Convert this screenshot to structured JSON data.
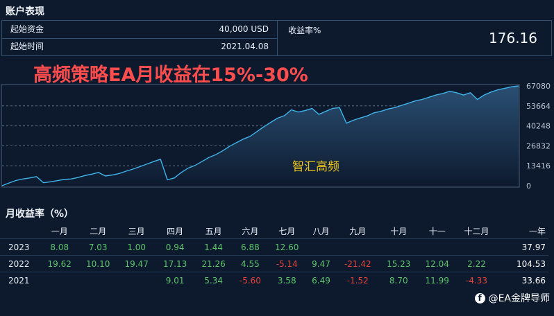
{
  "account": {
    "title": "账户表现",
    "start_capital_label": "起始资金",
    "start_capital_value": "40,000 USD",
    "start_time_label": "起始时间",
    "start_time_value": "2021.04.08",
    "return_label": "收益率%",
    "return_value": "176.16"
  },
  "headline": "高频策略EA月收益在15%-30%",
  "chart_data": {
    "type": "line",
    "annotation": "智汇高频",
    "y_ticks": [
      "67080",
      "53664",
      "40248",
      "26832",
      "13416",
      "0"
    ],
    "ylim": [
      0,
      67080
    ],
    "grid": true,
    "colors": {
      "line": "#3fb4ea",
      "fill_top": "#2a4f73",
      "fill_bottom": "#0d1a2e"
    },
    "values": [
      0,
      1800,
      3500,
      4500,
      5200,
      6100,
      2000,
      2600,
      3400,
      4200,
      4500,
      5500,
      6800,
      7800,
      8900,
      6500,
      7200,
      8200,
      9800,
      11200,
      12800,
      14500,
      16200,
      17800,
      4000,
      5200,
      8800,
      11800,
      13600,
      16200,
      18900,
      20800,
      23400,
      26400,
      28900,
      31300,
      33100,
      36400,
      39600,
      42600,
      45400,
      47100,
      51000,
      49500,
      50500,
      52000,
      48000,
      50000,
      52000,
      52500,
      42000,
      44000,
      45500,
      46900,
      49000,
      50000,
      51500,
      52500,
      54000,
      55500,
      57000,
      58000,
      59500,
      61000,
      62000,
      63500,
      62500,
      61000,
      62500,
      58000,
      61000,
      63000,
      64500,
      65500,
      66500,
      67080
    ]
  },
  "monthly": {
    "title": "月收益率（%）",
    "headers": [
      "",
      "一月",
      "二月",
      "三月",
      "四月",
      "五月",
      "六月",
      "七月",
      "八月",
      "九月",
      "十月",
      "十一",
      "十二月",
      "一年"
    ],
    "rows": [
      {
        "year": "2023",
        "values": [
          "8.08",
          "7.03",
          "1.00",
          "0.94",
          "1.44",
          "6.88",
          "12.60",
          "",
          "",
          "",
          "",
          ""
        ],
        "total": "37.97"
      },
      {
        "year": "2022",
        "values": [
          "19.62",
          "10.10",
          "19.47",
          "17.13",
          "21.26",
          "4.55",
          "-5.14",
          "9.47",
          "-21.42",
          "15.23",
          "12.04",
          "2.22"
        ],
        "total": "104.53"
      },
      {
        "year": "2021",
        "values": [
          "",
          "",
          "",
          "9.01",
          "5.34",
          "-5.60",
          "3.58",
          "6.49",
          "-1.52",
          "8.70",
          "11.99",
          "-4.33"
        ],
        "total": "33.66"
      }
    ]
  },
  "watermark": {
    "icon": "facebook-icon",
    "text": "@EA金牌导师"
  }
}
